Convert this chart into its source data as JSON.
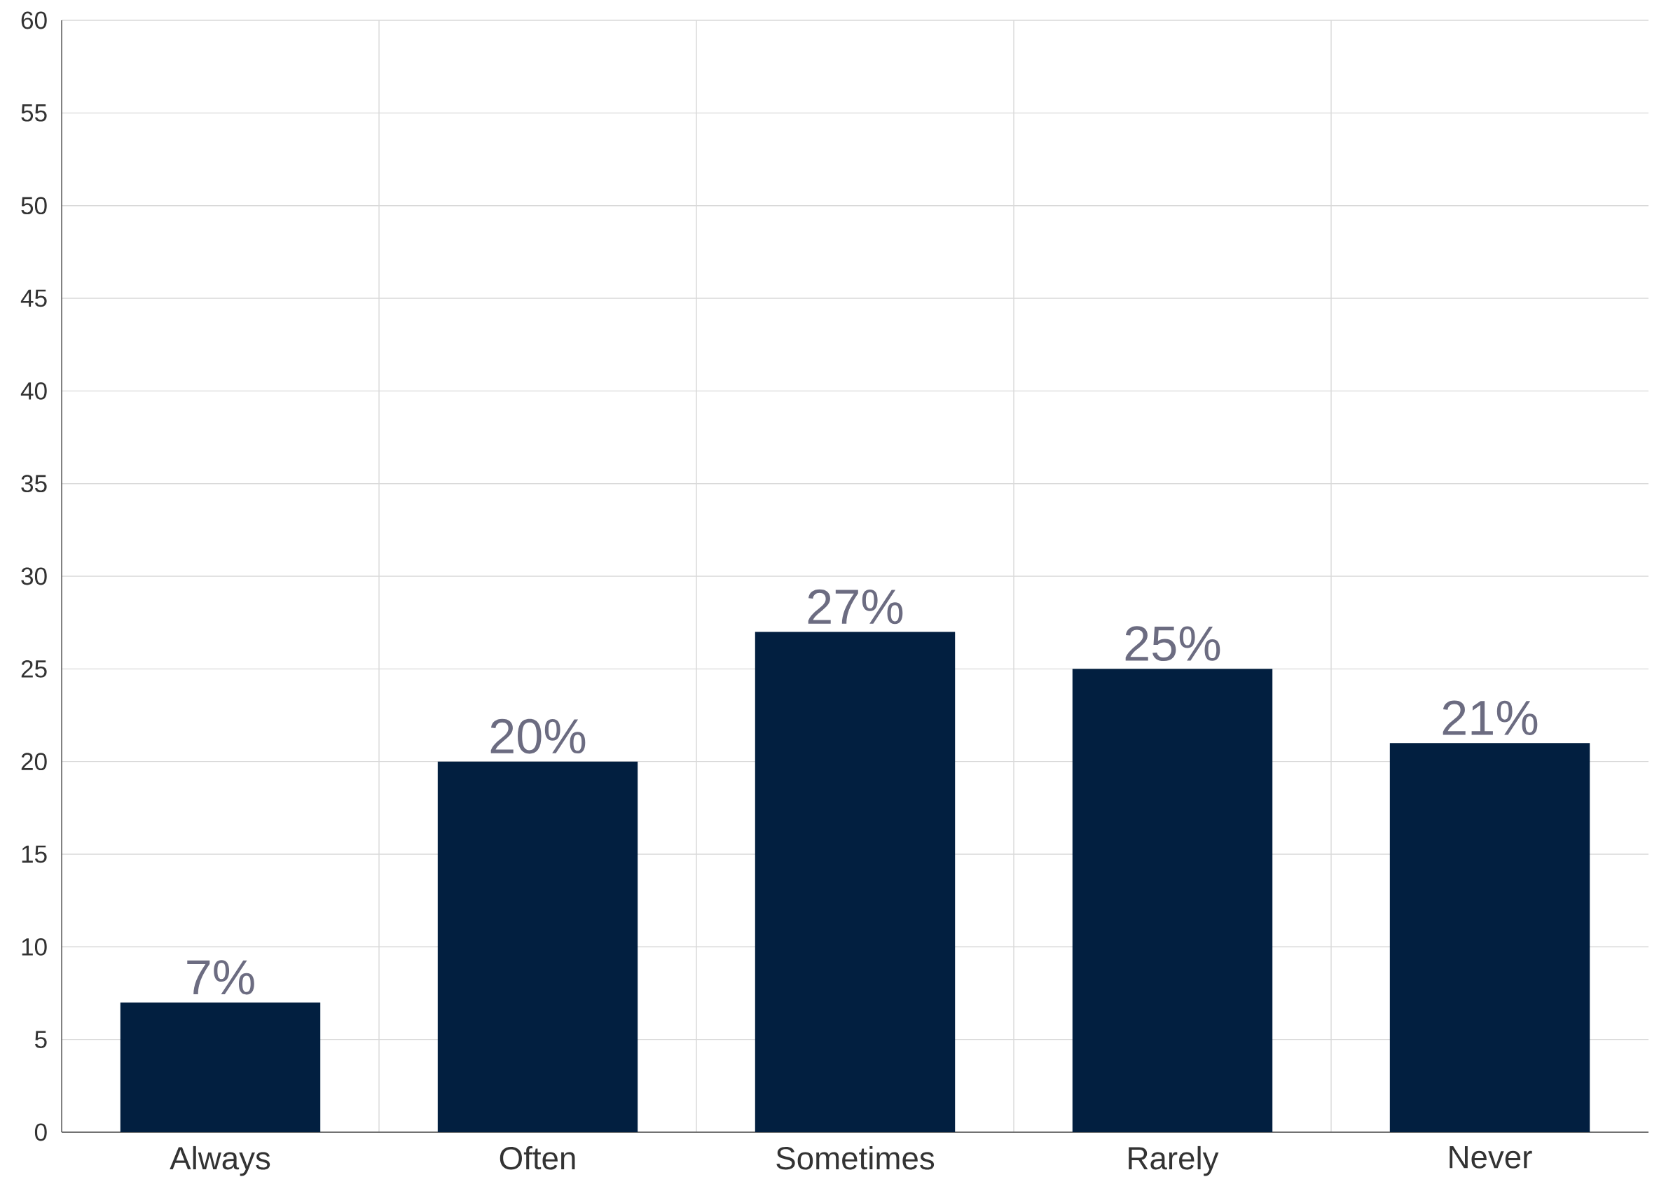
{
  "chart_data": {
    "type": "bar",
    "categories": [
      "Always",
      "Often",
      "Sometimes",
      "Rarely",
      "Never"
    ],
    "values": [
      7,
      20,
      27,
      25,
      21
    ],
    "value_labels": [
      "7%",
      "20%",
      "27%",
      "25%",
      "21%"
    ],
    "color": "#021f40",
    "ylim": [
      0,
      60
    ],
    "yticks": [
      0,
      5,
      10,
      15,
      20,
      25,
      30,
      35,
      40,
      45,
      50,
      55,
      60
    ],
    "grid": true
  }
}
